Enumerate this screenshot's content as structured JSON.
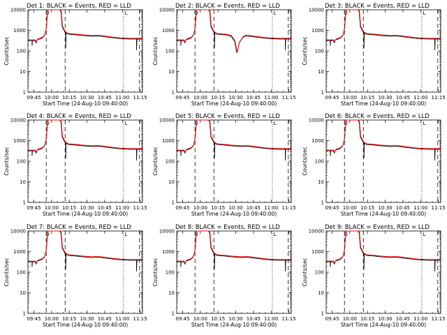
{
  "chart_data": {
    "type": "line",
    "layout": "3x3 grid of panels",
    "x_ticks": [
      "09:45",
      "10:00",
      "10:15",
      "10:30",
      "10:45",
      "11:00",
      "11:15"
    ],
    "xlabel": "Start Time (24-Aug-10 09:40:00)",
    "ylabel": "Counts/sec",
    "y_scale": "log",
    "ylim": [
      1,
      10000
    ],
    "y_ticks": [
      "1",
      "10",
      "100",
      "1000",
      "10000"
    ],
    "series_colors": {
      "events": "#000000",
      "lld": "#ff0000"
    },
    "dashed_vertical_lines_min": [
      15.5,
      31.5,
      94.5
    ],
    "dotted_vertical_lines_min": [
      81,
      96.5
    ],
    "marker_labels": {
      "circle": "O",
      "corner": "L"
    },
    "panels": [
      {
        "title": "Det 1: BLACK = Events, RED = LLD",
        "dip": null
      },
      {
        "title": "Det 2: BLACK = Events, RED = LLD",
        "dip": {
          "t": 51,
          "value": 80
        }
      },
      {
        "title": "Det 3: BLACK = Events, RED = LLD",
        "dip": null
      },
      {
        "title": "Det 4: BLACK = Events, RED = LLD",
        "dip": null
      },
      {
        "title": "Det 5: BLACK = Events, RED = LLD",
        "dip": null
      },
      {
        "title": "Det 6: BLACK = Events, RED = LLD",
        "dip": null
      },
      {
        "title": "Det 7: BLACK = Events, RED = LLD",
        "dip": null
      },
      {
        "title": "Det 8: BLACK = Events, RED = LLD",
        "dip": null
      },
      {
        "title": "Det 9: BLACK = Events, RED = LLD",
        "dip": null
      }
    ]
  }
}
